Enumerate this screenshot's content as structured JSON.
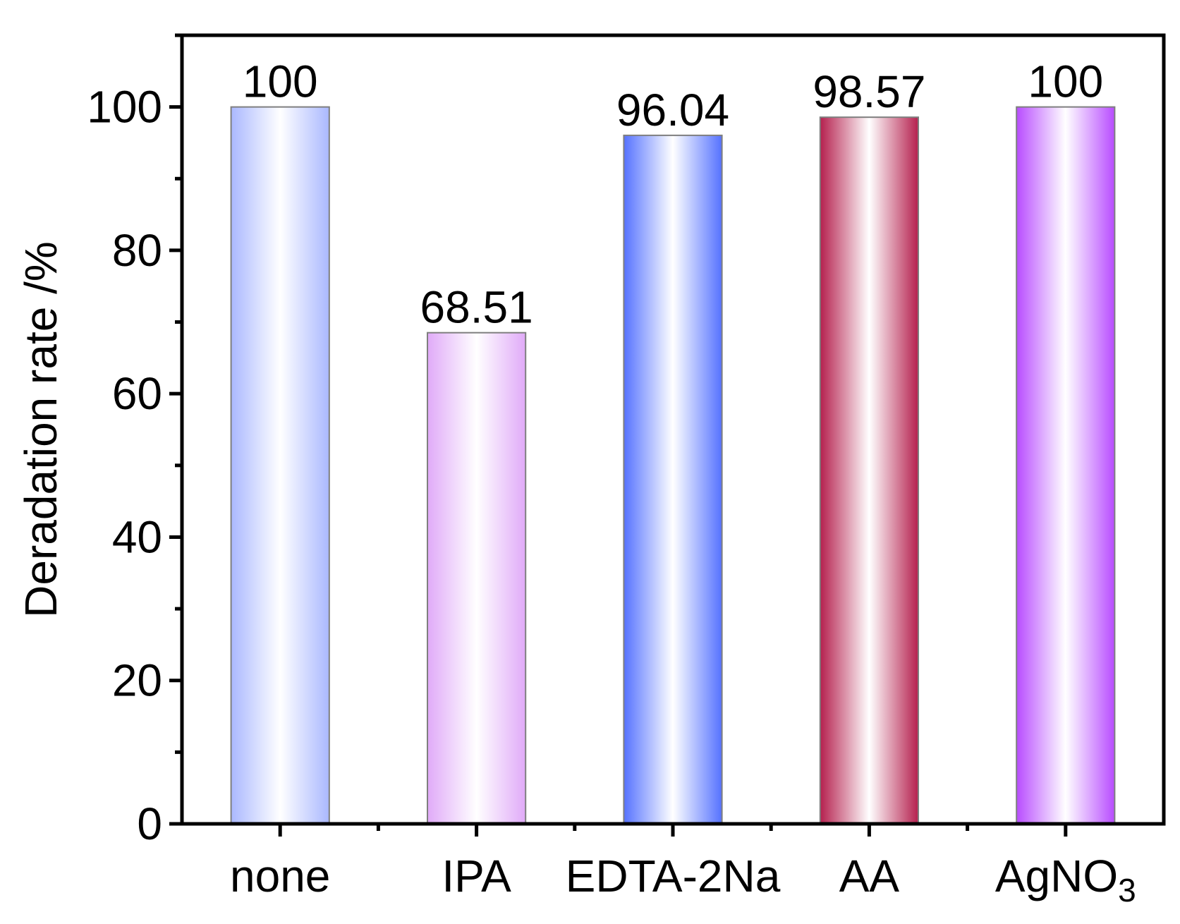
{
  "chart_data": {
    "type": "bar",
    "title": "",
    "xlabel": "",
    "ylabel": "Deradation rate /%",
    "ylim": [
      0,
      110
    ],
    "yticks": [
      0,
      20,
      40,
      60,
      80,
      100
    ],
    "grid": false,
    "legend": "none",
    "categories": [
      {
        "label": "none",
        "label_sub": ""
      },
      {
        "label": "IPA",
        "label_sub": ""
      },
      {
        "label": "EDTA-2Na",
        "label_sub": ""
      },
      {
        "label": "AA",
        "label_sub": ""
      },
      {
        "label": "AgNO",
        "label_sub": "3"
      }
    ],
    "values": [
      100,
      68.51,
      96.04,
      98.57,
      100
    ],
    "value_labels": [
      "100",
      "68.51",
      "96.04",
      "98.57",
      "100"
    ],
    "colors": [
      "#aab8ff",
      "#e0aaf8",
      "#5572ff",
      "#b5204e",
      "#b84cff"
    ]
  }
}
